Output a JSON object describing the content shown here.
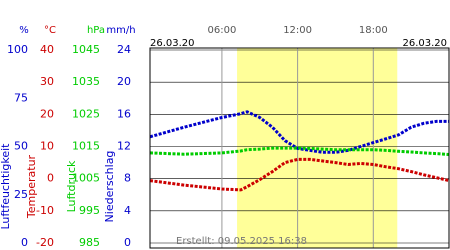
{
  "chart_data": {
    "type": "line",
    "start_date": "26.03.20",
    "end_date": "26.03.20",
    "created": "Erstellt: 09.05.2025 16:38",
    "xlim": [
      0.3,
      24
    ],
    "xticks": [
      {
        "value": 6,
        "label": "06:00"
      },
      {
        "value": 12,
        "label": "12:00"
      },
      {
        "value": 18,
        "label": "18:00"
      }
    ],
    "daylight": [
      7.2,
      19.9
    ],
    "daylight_color": "#ffff99",
    "grid": true,
    "axes": [
      {
        "id": "y",
        "unit": "%",
        "label": "Luftfeuchtigkeit",
        "color": "#0000cc",
        "ylim": [
          0,
          100
        ],
        "yticks": [
          0,
          25,
          50,
          75,
          100
        ]
      },
      {
        "id": "y2",
        "unit": "°C",
        "label": "Temperatur",
        "color": "#cc0000",
        "ylim": [
          -20,
          40
        ],
        "yticks": [
          -20,
          -10,
          0,
          10,
          20,
          30,
          40
        ]
      },
      {
        "id": "y3",
        "unit": "hPa",
        "label": "Luftdruck",
        "color": "#00cc00",
        "ylim": [
          985,
          1045
        ],
        "yticks": [
          985,
          995,
          1005,
          1015,
          1025,
          1035,
          1045
        ]
      },
      {
        "id": "y4",
        "unit": "mm/h",
        "label": "Niederschlag",
        "color": "#0000cc",
        "ylim": [
          0,
          24
        ],
        "yticks": [
          0,
          4,
          8,
          12,
          16,
          20,
          24
        ]
      }
    ],
    "x": [
      0.3,
      3,
      6,
      7.5,
      8,
      9,
      10,
      11,
      12,
      13,
      14,
      15,
      16,
      17,
      18,
      19,
      20,
      21,
      22,
      23,
      24
    ],
    "series": [
      {
        "name": "Luftfeuchtigkeit",
        "axis": "y",
        "color": "#0000cc",
        "values": [
          55,
          60,
          65,
          67,
          68,
          65,
          60,
          53,
          49,
          48,
          47,
          47,
          48,
          50,
          52,
          54,
          56,
          60,
          62,
          63,
          63
        ]
      },
      {
        "name": "Luftdruck",
        "axis": "y3",
        "color": "#00cc00",
        "values": [
          1013,
          1012.6,
          1013,
          1013.6,
          1014,
          1014.2,
          1014.5,
          1014.5,
          1014.5,
          1014.4,
          1014.2,
          1014,
          1014,
          1014,
          1014,
          1013.8,
          1013.5,
          1013.3,
          1013,
          1012.8,
          1012.5
        ]
      },
      {
        "name": "Temperatur",
        "axis": "y2",
        "color": "#cc0000",
        "values": [
          -0.6,
          -2,
          -3.2,
          -3.5,
          -2.5,
          -0.3,
          2.2,
          5,
          6,
          6,
          5.5,
          5,
          4.4,
          4.7,
          4.4,
          3.7,
          3.1,
          2.2,
          1.2,
          0.3,
          -0.6
        ]
      }
    ]
  }
}
